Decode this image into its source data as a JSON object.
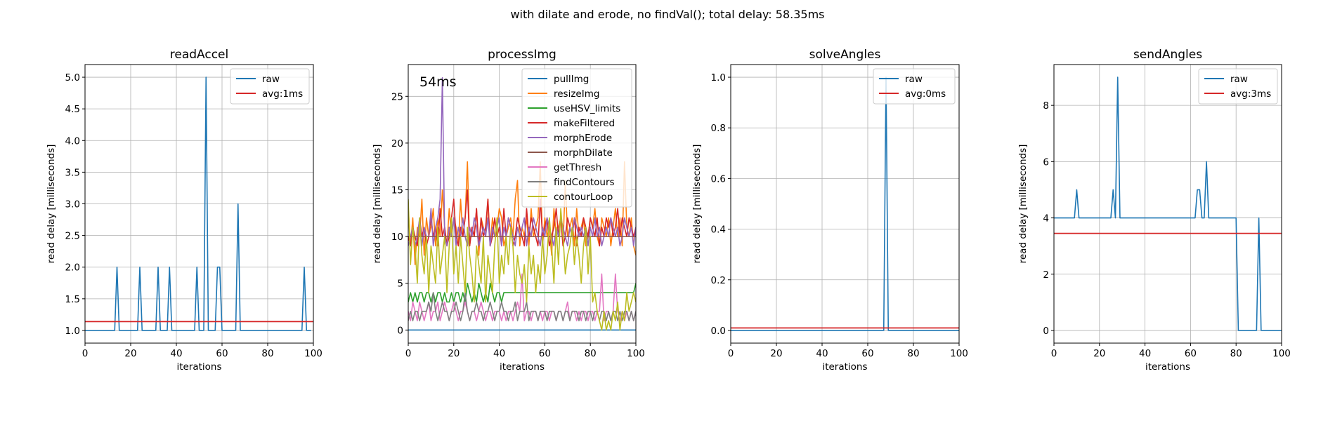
{
  "figure": {
    "suptitle": "with dilate and erode, no findVal(); total delay: 58.35ms"
  },
  "chart_data": [
    {
      "type": "line",
      "title": "readAccel",
      "xlabel": "iterations",
      "ylabel": "read delay [milliseconds]",
      "xlim": [
        0,
        100
      ],
      "ylim": [
        0.8,
        5.2
      ],
      "xticks": [
        0,
        20,
        40,
        60,
        80,
        100
      ],
      "yticks": [
        1.0,
        1.5,
        2.0,
        2.5,
        3.0,
        3.5,
        4.0,
        4.5,
        5.0
      ],
      "ytick_format": "1f",
      "grid": true,
      "legend": "top-right",
      "series": [
        {
          "name": "raw",
          "color": "#1f77b4",
          "spikes": [
            [
              14,
              2
            ],
            [
              24,
              2
            ],
            [
              32,
              2
            ],
            [
              37,
              2
            ],
            [
              49,
              2
            ],
            [
              53,
              5
            ],
            [
              58,
              2
            ],
            [
              59,
              2
            ],
            [
              67,
              3
            ],
            [
              96,
              2
            ]
          ],
          "baseline": 1,
          "xmax": 99
        }
      ],
      "hlines": [
        {
          "name": "avg:1ms",
          "y": 1.14,
          "color": "#d62728"
        }
      ]
    },
    {
      "type": "line",
      "title": "processImg",
      "xlabel": "iterations",
      "ylabel": "read delay [milliseconds]",
      "xlim": [
        0,
        100
      ],
      "ylim": [
        -1.4,
        28.4
      ],
      "xticks": [
        0,
        20,
        40,
        60,
        80,
        100
      ],
      "yticks": [
        0,
        5,
        10,
        15,
        20,
        25
      ],
      "ytick_format": "0f",
      "grid": true,
      "legend": "top-right",
      "annotation": "54ms",
      "series": [
        {
          "name": "pullImg",
          "color": "#1f77b4",
          "values": [
            0
          ]
        },
        {
          "name": "resizeImg",
          "color": "#ff7f0e",
          "values": [
            13,
            9,
            12,
            7,
            11,
            10,
            14,
            8,
            12,
            10,
            11,
            13,
            9,
            12,
            10,
            15,
            11,
            9,
            13,
            10,
            12,
            11,
            9,
            14,
            10,
            12,
            18,
            9,
            11,
            10,
            13,
            8,
            12,
            11,
            10,
            14,
            9,
            12,
            10,
            11,
            13,
            12,
            9,
            10,
            11,
            12,
            10,
            14,
            16,
            9,
            11,
            10,
            12,
            9,
            13,
            10,
            11,
            12,
            18,
            9,
            12,
            10,
            11,
            8,
            13,
            10,
            11,
            12,
            9,
            16,
            10,
            11,
            12,
            9,
            13,
            10,
            11,
            12,
            9,
            10,
            12,
            11,
            13,
            10,
            9,
            12,
            11,
            10,
            12,
            9,
            11,
            13,
            10,
            12,
            9,
            18,
            11,
            10,
            12,
            9,
            8
          ]
        },
        {
          "name": "useHSV_limits",
          "color": "#2ca02c",
          "values": [
            3,
            4,
            3,
            4,
            3,
            4,
            4,
            3,
            4,
            4,
            3,
            4,
            3,
            4,
            4,
            3,
            4,
            3,
            3,
            4,
            3,
            4,
            4,
            3,
            4,
            3,
            5,
            4,
            3,
            4,
            3,
            5,
            4,
            3,
            4,
            3,
            5,
            4,
            3,
            4,
            4,
            3,
            4,
            4,
            4,
            4,
            4,
            4,
            4,
            4,
            4,
            4,
            4,
            4,
            4,
            4,
            4,
            4,
            4,
            4,
            4,
            4,
            4,
            4,
            4,
            4,
            4,
            4,
            4,
            4,
            4,
            4,
            4,
            4,
            4,
            4,
            4,
            4,
            4,
            4,
            4,
            4,
            4,
            4,
            4,
            4,
            4,
            4,
            4,
            4,
            4,
            4,
            4,
            4,
            4,
            4,
            4,
            4,
            4,
            4,
            5
          ]
        },
        {
          "name": "makeFiltered",
          "color": "#d62728",
          "values": [
            10,
            9,
            11,
            10,
            9,
            12,
            10,
            11,
            9,
            10,
            12,
            10,
            11,
            9,
            13,
            10,
            11,
            9,
            10,
            12,
            14,
            10,
            9,
            11,
            10,
            12,
            15,
            9,
            11,
            10,
            13,
            9,
            12,
            10,
            11,
            14,
            9,
            10,
            12,
            10,
            11,
            9,
            13,
            10,
            12,
            11,
            9,
            10,
            12,
            11,
            10,
            9,
            13,
            10,
            12,
            11,
            10,
            9,
            14,
            10,
            11,
            12,
            9,
            10,
            11,
            13,
            10,
            12,
            9,
            10,
            12,
            11,
            10,
            12,
            9,
            11,
            10,
            12,
            11,
            10,
            12,
            11,
            10,
            12,
            9,
            11,
            10,
            12,
            11,
            12,
            10,
            11,
            13,
            10,
            12,
            11,
            10,
            12,
            11,
            10,
            11
          ]
        },
        {
          "name": "morphErode",
          "color": "#9467bd",
          "values": [
            9,
            10,
            11,
            9,
            10,
            12,
            9,
            11,
            10,
            10,
            13,
            9,
            11,
            12,
            14,
            27,
            10,
            9,
            11,
            10,
            12,
            9,
            11,
            10,
            12,
            10,
            9,
            11,
            10,
            12,
            11,
            9,
            10,
            11,
            10,
            12,
            9,
            11,
            10,
            11,
            12,
            9,
            11,
            10,
            12,
            11,
            10,
            9,
            11,
            10,
            11,
            12,
            9,
            11,
            10,
            12,
            11,
            10,
            9,
            11,
            10,
            12,
            11,
            10,
            9,
            11,
            10,
            12,
            11,
            10,
            9,
            11,
            10,
            12,
            11,
            10,
            11,
            10,
            11,
            9,
            11,
            10,
            12,
            10,
            11,
            9,
            10,
            11,
            10,
            12,
            11,
            10,
            11,
            9,
            10,
            12,
            11,
            10,
            11,
            9,
            11
          ]
        },
        {
          "name": "morphDilate",
          "color": "#8c564b",
          "values": [
            10
          ]
        },
        {
          "name": "getThresh",
          "color": "#e377c2",
          "values": [
            2,
            1,
            3,
            2,
            1,
            3,
            2,
            1,
            2,
            3,
            1,
            2,
            2,
            3,
            1,
            2,
            3,
            2,
            1,
            2,
            3,
            2,
            1,
            2,
            2,
            3,
            2,
            1,
            2,
            2,
            1,
            2,
            3,
            2,
            1,
            2,
            2,
            1,
            2,
            2,
            2,
            1,
            2,
            1,
            2,
            2,
            1,
            2,
            3,
            2,
            6,
            1,
            2,
            2,
            1,
            2,
            2,
            1,
            2,
            1,
            2,
            2,
            1,
            2,
            2,
            1,
            2,
            2,
            1,
            2,
            3,
            1,
            2,
            2,
            1,
            2,
            1,
            2,
            2,
            1,
            2,
            2,
            1,
            2,
            2,
            6,
            1,
            2,
            2,
            1,
            2,
            6,
            2,
            1,
            2,
            1,
            2,
            1,
            2,
            1,
            2
          ]
        },
        {
          "name": "findContours",
          "color": "#7f7f7f",
          "values": [
            1,
            2,
            1,
            2,
            2,
            1,
            2,
            2,
            2,
            3,
            2,
            4,
            2,
            1,
            2,
            3,
            2,
            2,
            1,
            2,
            2,
            3,
            2,
            1,
            2,
            4,
            2,
            1,
            2,
            2,
            3,
            2,
            2,
            1,
            2,
            2,
            3,
            2,
            1,
            2,
            2,
            3,
            2,
            2,
            1,
            2,
            2,
            3,
            1,
            2,
            2,
            2,
            3,
            1,
            2,
            2,
            2,
            1,
            2,
            2,
            2,
            1,
            2,
            2,
            2,
            1,
            2,
            2,
            1,
            2,
            2,
            1,
            2,
            2,
            2,
            1,
            2,
            2,
            1,
            2,
            2,
            1,
            2,
            2,
            1,
            2,
            2,
            1,
            2,
            1,
            2,
            2,
            1,
            2,
            1,
            2,
            2,
            1,
            2,
            1,
            2
          ]
        },
        {
          "name": "contourLoop",
          "color": "#bcbd22",
          "values": [
            14,
            7,
            11,
            9,
            5,
            12,
            8,
            6,
            10,
            4,
            9,
            7,
            5,
            11,
            6,
            8,
            10,
            4,
            9,
            12,
            6,
            9,
            5,
            10,
            7,
            4,
            11,
            8,
            6,
            3,
            9,
            7,
            5,
            10,
            3,
            8,
            6,
            4,
            9,
            12,
            5,
            8,
            6,
            10,
            7,
            11,
            9,
            4,
            8,
            6,
            5,
            7,
            3,
            9,
            6,
            8,
            4,
            7,
            5,
            10,
            6,
            8,
            12,
            9,
            5,
            11,
            7,
            13,
            10,
            6,
            8,
            9,
            11,
            7,
            10,
            8,
            5,
            9,
            11,
            6,
            10,
            3,
            4,
            2,
            1,
            0,
            2,
            0,
            1,
            0,
            2,
            1,
            3,
            0,
            2,
            1,
            4,
            2,
            3,
            4,
            3
          ]
        }
      ]
    },
    {
      "type": "line",
      "title": "solveAngles",
      "xlabel": "iterations",
      "ylabel": "read delay [milliseconds]",
      "xlim": [
        0,
        100
      ],
      "ylim": [
        -0.05,
        1.05
      ],
      "xticks": [
        0,
        20,
        40,
        60,
        80,
        100
      ],
      "yticks": [
        0.0,
        0.2,
        0.4,
        0.6,
        0.8,
        1.0
      ],
      "ytick_format": "1f",
      "grid": true,
      "legend": "top-right",
      "series": [
        {
          "name": "raw",
          "color": "#1f77b4",
          "spikes": [
            [
              68,
              1
            ]
          ],
          "baseline": 0,
          "xmax": 100
        }
      ],
      "hlines": [
        {
          "name": "avg:0ms",
          "y": 0.01,
          "color": "#d62728"
        }
      ]
    },
    {
      "type": "line",
      "title": "sendAngles",
      "xlabel": "iterations",
      "ylabel": "read delay [milliseconds]",
      "xlim": [
        0,
        100
      ],
      "ylim": [
        -0.45,
        9.45
      ],
      "xticks": [
        0,
        20,
        40,
        60,
        80,
        100
      ],
      "yticks": [
        0,
        2,
        4,
        6,
        8
      ],
      "ytick_format": "0f",
      "grid": true,
      "legend": "top-right",
      "series": [
        {
          "name": "raw",
          "color": "#1f77b4",
          "values": [
            4,
            4,
            4,
            4,
            4,
            4,
            4,
            4,
            4,
            4,
            5,
            4,
            4,
            4,
            4,
            4,
            4,
            4,
            4,
            4,
            4,
            4,
            4,
            4,
            4,
            4,
            5,
            4,
            9,
            4,
            4,
            4,
            4,
            4,
            4,
            4,
            4,
            4,
            4,
            4,
            4,
            4,
            4,
            4,
            4,
            4,
            4,
            4,
            4,
            4,
            4,
            4,
            4,
            4,
            4,
            4,
            4,
            4,
            4,
            4,
            4,
            4,
            4,
            5,
            5,
            4,
            4,
            6,
            4,
            4,
            4,
            4,
            4,
            4,
            4,
            4,
            4,
            4,
            4,
            4,
            4,
            0,
            0,
            0,
            0,
            0,
            0,
            0,
            0,
            0,
            4,
            0,
            0,
            0,
            0,
            0,
            0,
            0,
            0,
            0,
            0
          ]
        }
      ],
      "hlines": [
        {
          "name": "avg:3ms",
          "y": 3.45,
          "color": "#d62728"
        }
      ]
    }
  ]
}
